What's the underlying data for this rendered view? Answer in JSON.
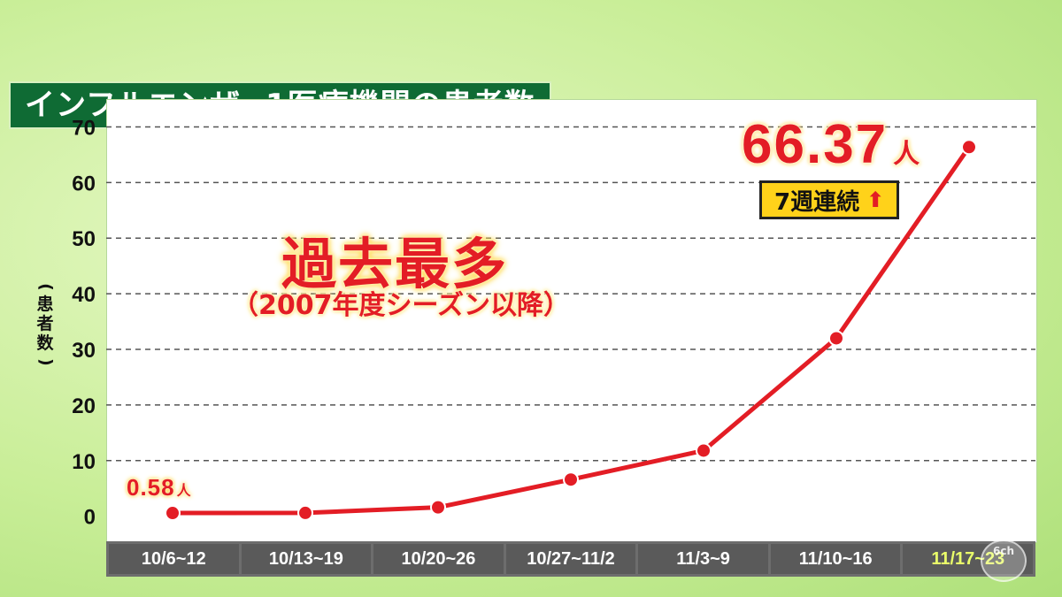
{
  "title": {
    "part1": "インフルエンザ",
    "part2": "1医療機関の患者数"
  },
  "ylabel": {
    "open": "(",
    "chars": [
      "患",
      "者",
      "数"
    ],
    "close": ")"
  },
  "annotations": {
    "record": "過去最多",
    "record_sub": "（2007年度シーズン以降）",
    "latest_value": "66.37",
    "latest_unit": "人",
    "weeks_badge": "7週連続",
    "first_value": "0.58",
    "first_unit": "人"
  },
  "logo_text": "6ch",
  "colors": {
    "line": "#e31d25",
    "title_bg": "#0f6b34",
    "axis_bar": "#5a5a5a",
    "last_tick": "#eaff6a"
  },
  "chart_data": {
    "type": "line",
    "categories": [
      "10/6~12",
      "10/13~19",
      "10/20~26",
      "10/27~11/2",
      "11/3~9",
      "11/10~16",
      "11/17~23"
    ],
    "values": [
      0.58,
      0.6,
      1.6,
      6.6,
      11.8,
      32.0,
      66.37
    ],
    "ylim": [
      -4.5,
      75
    ],
    "yticks": [
      0,
      10,
      20,
      30,
      40,
      50,
      60,
      70
    ],
    "grid": true
  }
}
